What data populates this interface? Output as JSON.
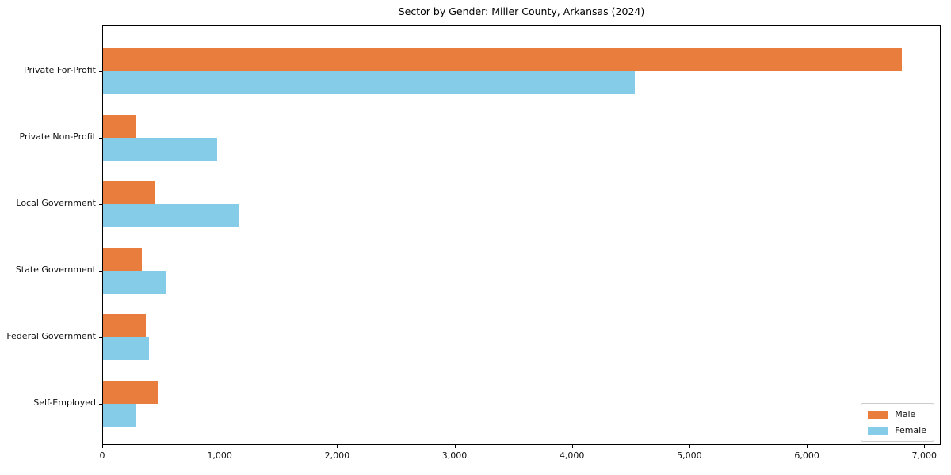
{
  "figure": {
    "background": "#ffffff",
    "axis_color": "#000000"
  },
  "chart_data": {
    "type": "bar",
    "orientation": "horizontal",
    "title": "Sector by Gender: Miller County, Arkansas (2024)",
    "categories": [
      "Private For-Profit",
      "Private Non-Profit",
      "Local Government",
      "State Government",
      "Federal Government",
      "Self-Employed"
    ],
    "series": [
      {
        "name": "Male",
        "color": "#e87d3e",
        "values": [
          6800,
          280,
          445,
          330,
          365,
          465
        ]
      },
      {
        "name": "Female",
        "color": "#85cce8",
        "values": [
          4530,
          970,
          1160,
          535,
          390,
          280
        ]
      }
    ],
    "xlim": [
      0,
      7140
    ],
    "xticks": [
      {
        "value": 0,
        "label": "0"
      },
      {
        "value": 1000,
        "label": "1,000"
      },
      {
        "value": 2000,
        "label": "2,000"
      },
      {
        "value": 3000,
        "label": "3,000"
      },
      {
        "value": 4000,
        "label": "4,000"
      },
      {
        "value": 5000,
        "label": "5,000"
      },
      {
        "value": 6000,
        "label": "6,000"
      },
      {
        "value": 7000,
        "label": "7,000"
      }
    ],
    "legend": {
      "position": "lower right",
      "entries": [
        "Male",
        "Female"
      ]
    },
    "grid": false
  }
}
